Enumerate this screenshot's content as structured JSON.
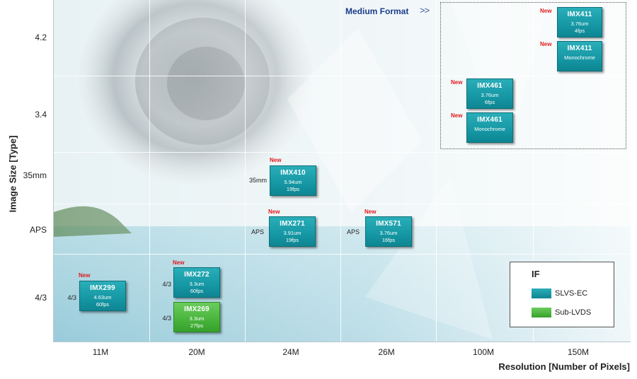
{
  "axes": {
    "ylabel": "Image Size [Type]",
    "xlabel": "Resolution  [Number of Pixels]",
    "y_ticks": [
      "4.2",
      "3.4",
      "35mm",
      "APS",
      "4/3"
    ],
    "x_ticks": [
      "11M",
      "20M",
      "24M",
      "26M",
      "100M",
      "150M"
    ]
  },
  "medium_format": {
    "label": "Medium Format",
    "arrow": ">>"
  },
  "new_tag": "New",
  "sensors": [
    {
      "id": "imx411a",
      "name": "IMX411",
      "line1": "3.76um",
      "line2": "4fps",
      "is_new": true,
      "format": "",
      "interface": "SLVS-EC"
    },
    {
      "id": "imx411m",
      "name": "IMX411",
      "line1": "Monochrome",
      "line2": "",
      "is_new": true,
      "format": "",
      "interface": "SLVS-EC"
    },
    {
      "id": "imx461a",
      "name": "IMX461",
      "line1": "3.76um",
      "line2": "6fps",
      "is_new": true,
      "format": "",
      "interface": "SLVS-EC"
    },
    {
      "id": "imx461m",
      "name": "IMX461",
      "line1": "Monochrome",
      "line2": "",
      "is_new": true,
      "format": "",
      "interface": "SLVS-EC"
    },
    {
      "id": "imx410",
      "name": "IMX410",
      "line1": "5.94um",
      "line2": "19fps",
      "is_new": true,
      "format": "35mm",
      "interface": "SLVS-EC"
    },
    {
      "id": "imx271",
      "name": "IMX271",
      "line1": "3.91um",
      "line2": "19fps",
      "is_new": true,
      "format": "APS",
      "interface": "SLVS-EC"
    },
    {
      "id": "imx571",
      "name": "IMX571",
      "line1": "3.76um",
      "line2": "16fps",
      "is_new": true,
      "format": "APS",
      "interface": "SLVS-EC"
    },
    {
      "id": "imx299",
      "name": "IMX299",
      "line1": "4.63um",
      "line2": "60fps",
      "is_new": true,
      "format": "4/3",
      "interface": "SLVS-EC"
    },
    {
      "id": "imx272",
      "name": "IMX272",
      "line1": "3.3um",
      "line2": "60fps",
      "is_new": true,
      "format": "4/3",
      "interface": "SLVS-EC"
    },
    {
      "id": "imx269",
      "name": "IMX269",
      "line1": "3.3um",
      "line2": "27fps",
      "is_new": false,
      "format": "4/3",
      "interface": "Sub-LVDS"
    }
  ],
  "legend": {
    "title": "IF",
    "items": [
      {
        "label": "SLVS-EC",
        "color": "#1597a4"
      },
      {
        "label": "Sub-LVDS",
        "color": "#48b43c"
      }
    ]
  }
}
